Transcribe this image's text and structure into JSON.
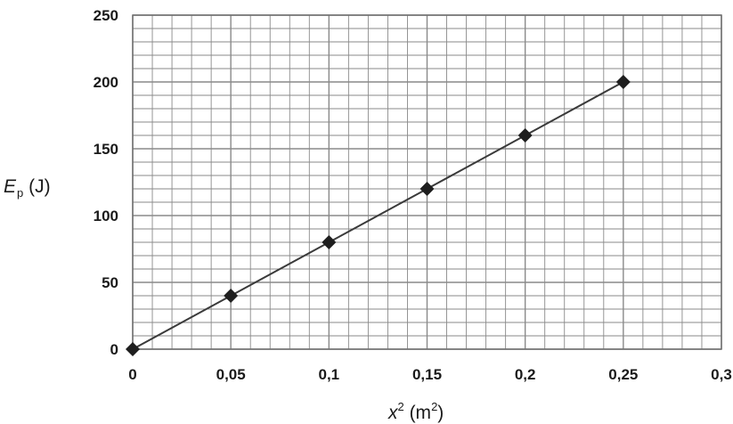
{
  "chart_data": {
    "type": "line",
    "title": "",
    "xlabel": {
      "symbol": "x",
      "superscript": "2",
      "unit_prefix": " (m",
      "unit_superscript": "2",
      "unit_suffix": ")"
    },
    "ylabel": {
      "symbol": "E",
      "subscript": "p",
      "unit": " (J)"
    },
    "xlim": [
      0,
      0.3
    ],
    "ylim": [
      0,
      250
    ],
    "x_ticks": [
      "0",
      "0,05",
      "0,1",
      "0,15",
      "0,2",
      "0,25",
      "0,3"
    ],
    "y_ticks": [
      "0",
      "50",
      "100",
      "150",
      "200",
      "250"
    ],
    "grid": true,
    "legend": "none",
    "series": [
      {
        "marker": "diamond",
        "line": true,
        "x": [
          0,
          0.05,
          0.1,
          0.15,
          0.2,
          0.25
        ],
        "y": [
          0,
          40,
          80,
          120,
          160,
          200
        ]
      }
    ],
    "colors": {
      "grid": "#8a8a8a",
      "line": "#3a3a3a",
      "marker": "#1e1e1e",
      "text": "#1a1a1a"
    }
  }
}
